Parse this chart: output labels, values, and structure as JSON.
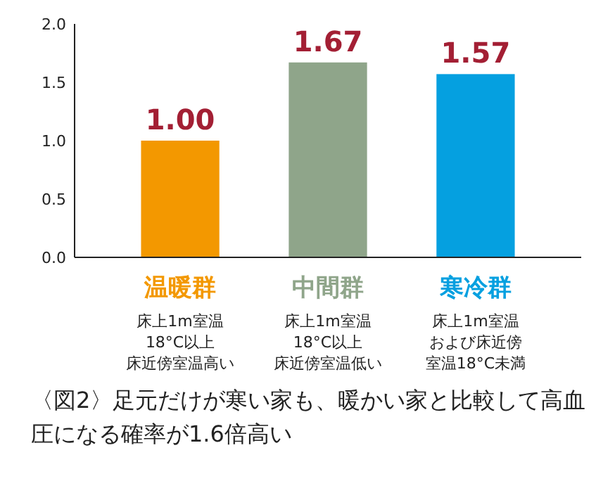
{
  "chart_data": {
    "type": "bar",
    "categories": [
      "温暖群",
      "中間群",
      "寒冷群"
    ],
    "values": [
      1.0,
      1.67,
      1.57
    ],
    "colors": [
      "#f39800",
      "#8fa58a",
      "#05a0e0"
    ],
    "value_labels": [
      "1.00",
      "1.67",
      "1.57"
    ],
    "ylim": [
      0,
      2
    ],
    "yticks": [
      {
        "value": 0,
        "label": "0.0"
      },
      {
        "value": 0.5,
        "label": "0.5"
      },
      {
        "value": 1,
        "label": "1.0"
      },
      {
        "value": 1.5,
        "label": "1.5"
      },
      {
        "value": 2,
        "label": "2.0"
      }
    ],
    "grid": false,
    "annotations": [
      "床上1m室温",
      "18°C以上",
      "床近傍室温高い",
      "床上1m室温",
      "18°C以上",
      "床近傍室温低い",
      "床上1m室温",
      "および床近傍",
      "室温18°C未満",
      "〈図2〉足元だけが寒い家も、暖かい家と比較して高血圧になる確率が1.6倍高い"
    ]
  }
}
